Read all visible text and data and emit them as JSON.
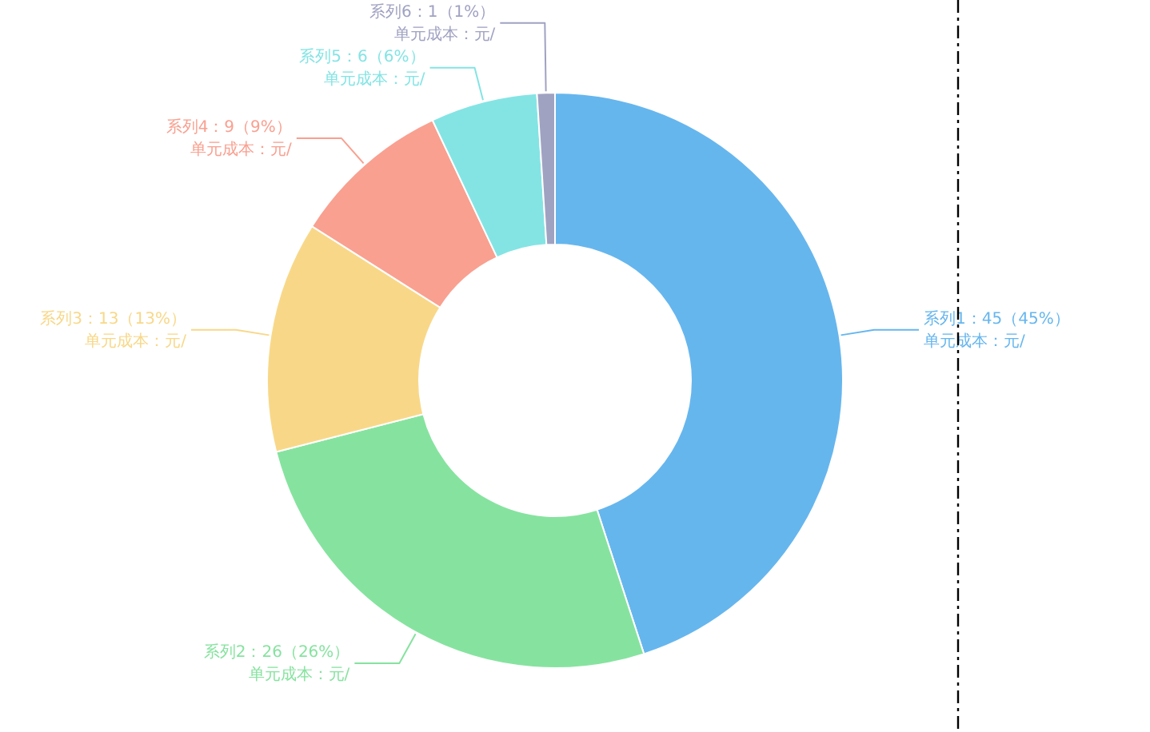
{
  "chart_data": {
    "type": "donut",
    "categories": [
      "系列1",
      "系列2",
      "系列3",
      "系列4",
      "系列5",
      "系列6"
    ],
    "values": [
      45,
      26,
      13,
      9,
      6,
      1
    ],
    "colors": [
      "#66b6ee",
      "#86e39f",
      "#f8d888",
      "#f9a090",
      "#84e4e4",
      "#a0a2c2"
    ],
    "value_labels": [
      "：45（45%）",
      "：26（26%）",
      "：13（13%）",
      "：9（9%）",
      "：6（6%）",
      "：1（1%）"
    ],
    "annotations": [
      "单元成本：元/",
      "单元成本：元/",
      "单元成本：元/",
      "单元成本：元/",
      "单元成本：元/",
      "单元成本：元/"
    ],
    "ref_lines": [
      {
        "axis": "x",
        "value": null,
        "line_style": "dashdot"
      }
    ]
  }
}
